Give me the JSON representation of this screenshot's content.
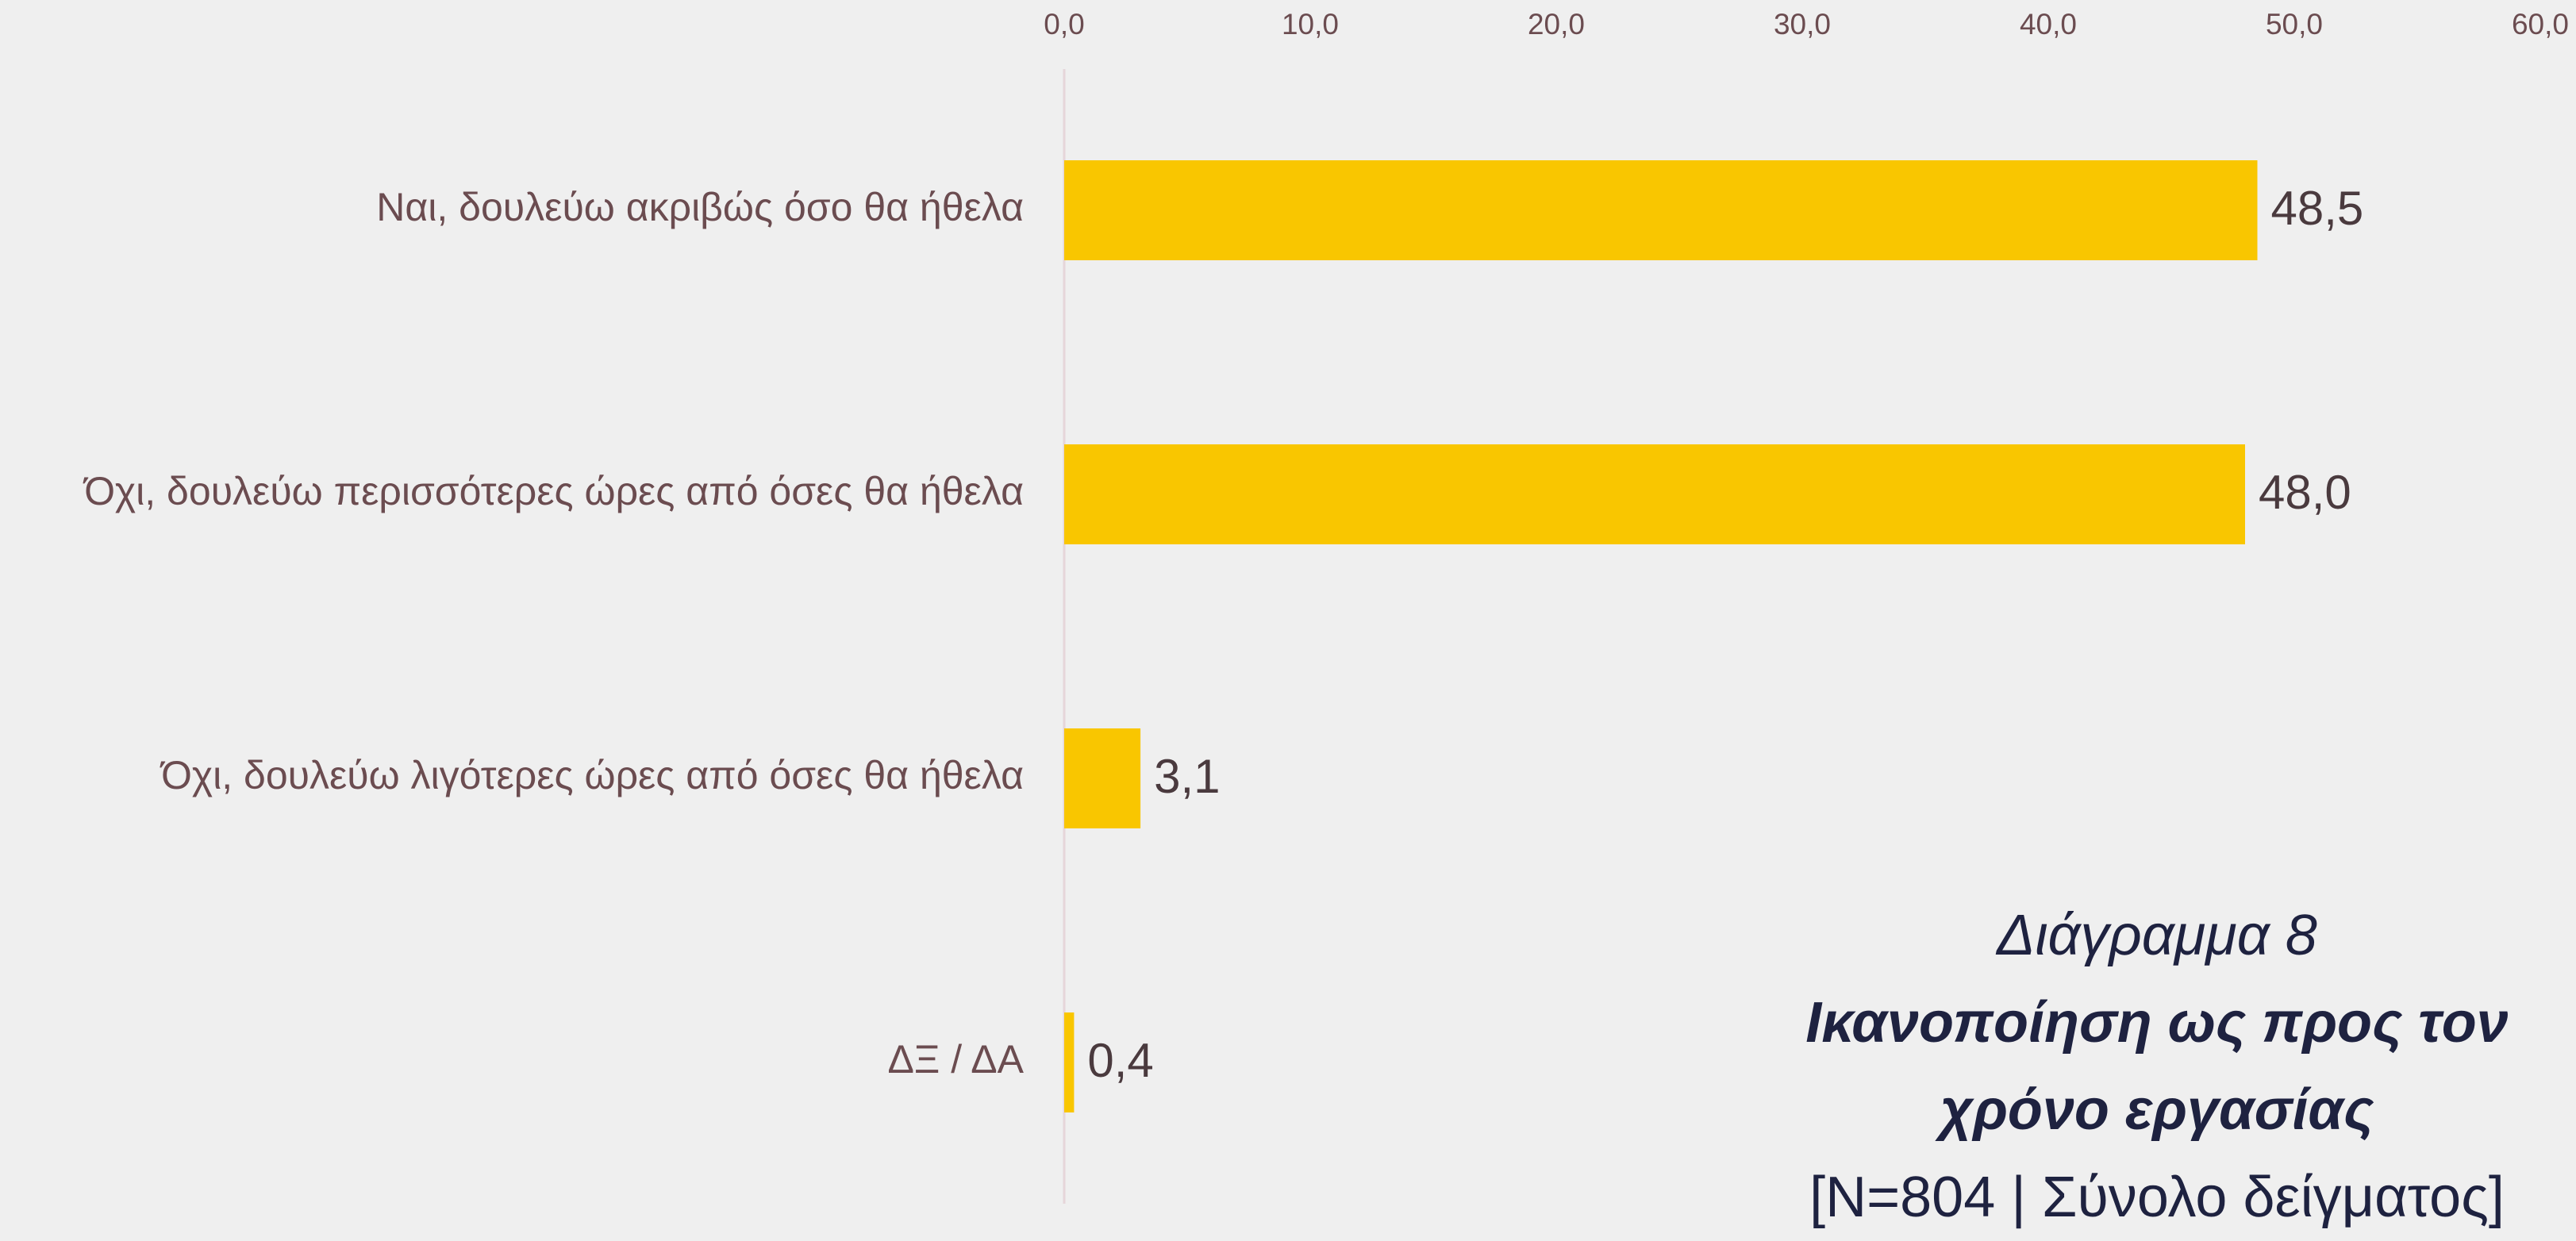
{
  "chart_data": {
    "type": "barh",
    "title": "Ικανοποίηση ως προς τον χρόνο εργασίας",
    "supertitle": "Διάγραμμα 8",
    "subtitle": "[Ν=804 | Σύνολο δείγματος]",
    "categories": [
      "Ναι, δουλεύω ακριβώς όσο θα ήθελα",
      "Όχι, δουλεύω περισσότερες ώρες από όσες θα ήθελα",
      "Όχι, δουλεύω λιγότερες ώρες από όσες θα ήθελα",
      "ΔΞ / ΔΑ"
    ],
    "values": [
      48.5,
      48.0,
      3.1,
      0.4
    ],
    "value_labels": [
      "48,5",
      "48,0",
      "3,1",
      "0,4"
    ],
    "color": "#f9c600",
    "xlim": [
      0,
      60
    ],
    "xticks": [
      {
        "value": 0,
        "label": "0,0"
      },
      {
        "value": 10,
        "label": "10,0"
      },
      {
        "value": 20,
        "label": "20,0"
      },
      {
        "value": 30,
        "label": "30,0"
      },
      {
        "value": 40,
        "label": "40,0"
      },
      {
        "value": 50,
        "label": "50,0"
      },
      {
        "value": 60,
        "label": "60,0"
      }
    ]
  }
}
